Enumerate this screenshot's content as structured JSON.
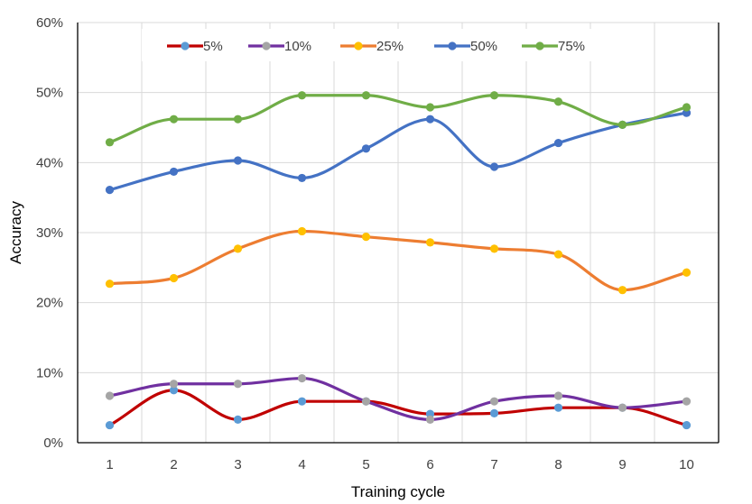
{
  "chart_data": {
    "type": "line",
    "title": "",
    "xlabel": "Training cycle",
    "ylabel": "Accuracy",
    "x": [
      1,
      2,
      3,
      4,
      5,
      6,
      7,
      8,
      9,
      10
    ],
    "ylim": [
      0,
      60
    ],
    "y_ticks": [
      0,
      10,
      20,
      30,
      40,
      50,
      60
    ],
    "y_tick_labels": [
      "0%",
      "10%",
      "20%",
      "30%",
      "40%",
      "50%",
      "60%"
    ],
    "grid": true,
    "legend_position": "top",
    "series": [
      {
        "name": "5%",
        "line_color": "#c00000",
        "marker_color": "#5b9bd5",
        "values": [
          2.5,
          7.5,
          3.3,
          5.9,
          5.9,
          4.1,
          4.2,
          5.0,
          5.0,
          2.5
        ]
      },
      {
        "name": "10%",
        "line_color": "#7030a0",
        "marker_color": "#a5a5a5",
        "values": [
          6.7,
          8.4,
          8.4,
          9.2,
          5.9,
          3.3,
          5.9,
          6.7,
          5.0,
          5.9
        ]
      },
      {
        "name": "25%",
        "line_color": "#ed7d31",
        "marker_color": "#ffc000",
        "values": [
          22.7,
          23.5,
          27.7,
          30.2,
          29.4,
          28.6,
          27.7,
          26.9,
          21.8,
          24.3
        ]
      },
      {
        "name": "50%",
        "line_color": "#4472c4",
        "marker_color": "#4472c4",
        "values": [
          36.1,
          38.7,
          40.3,
          37.8,
          42.0,
          46.2,
          39.4,
          42.8,
          45.4,
          47.1
        ]
      },
      {
        "name": "75%",
        "line_color": "#70ad47",
        "marker_color": "#70ad47",
        "values": [
          42.9,
          46.2,
          46.2,
          49.6,
          49.6,
          47.9,
          49.6,
          48.7,
          45.4,
          47.9
        ]
      }
    ]
  }
}
